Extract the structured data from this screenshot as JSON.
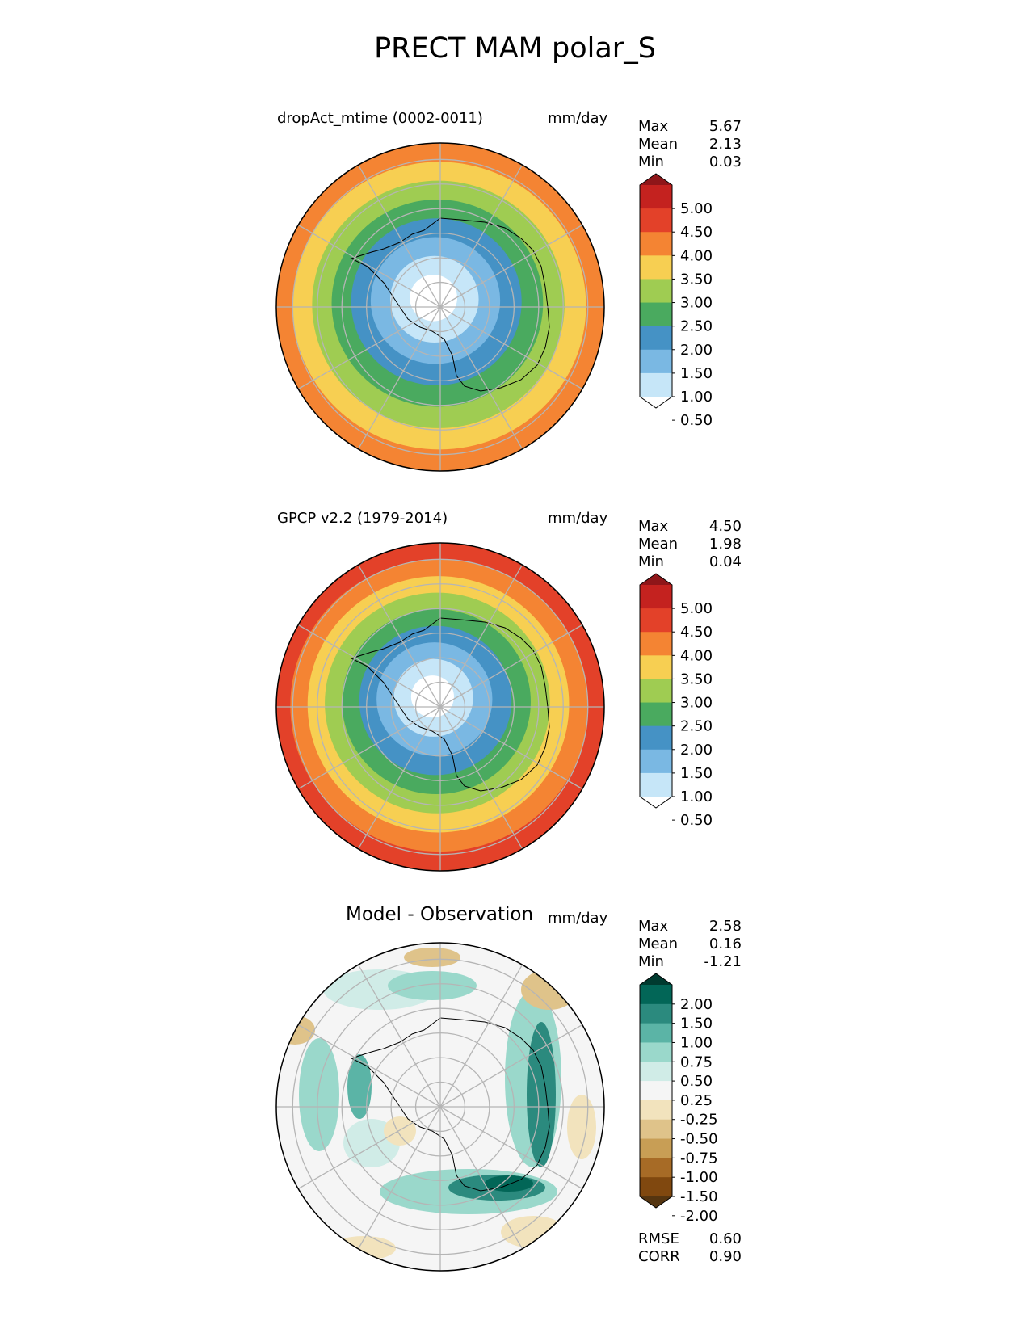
{
  "figure": {
    "title": "PRECT MAM polar_S"
  },
  "panels": [
    {
      "id": "model",
      "title": "dropAct_mtime (0002-0011)",
      "units": "mm/day",
      "stats": [
        {
          "label": "Max",
          "value": "5.67"
        },
        {
          "label": "Mean",
          "value": "2.13"
        },
        {
          "label": "Min",
          "value": "0.03"
        }
      ],
      "colorbar": {
        "levels": [
          "0.50",
          "1.00",
          "1.50",
          "2.00",
          "2.50",
          "3.00",
          "3.50",
          "4.00",
          "4.50",
          "5.00"
        ],
        "colors": [
          "#ffffff",
          "#c6e6f8",
          "#7ab8e3",
          "#4592c5",
          "#4aaa5f",
          "#9fcc52",
          "#f7cf52",
          "#f48433",
          "#e34129",
          "#c4221f",
          "#8f1619"
        ],
        "extend": "both"
      },
      "map_rings": [
        "#f48433",
        "#f7cf52",
        "#9fcc52",
        "#4aaa5f",
        "#4592c5",
        "#7ab8e3",
        "#c6e6f8",
        "#ffffff"
      ]
    },
    {
      "id": "obs",
      "title": "GPCP v2.2 (1979-2014)",
      "units": "mm/day",
      "stats": [
        {
          "label": "Max",
          "value": "4.50"
        },
        {
          "label": "Mean",
          "value": "1.98"
        },
        {
          "label": "Min",
          "value": "0.04"
        }
      ],
      "colorbar": {
        "levels": [
          "0.50",
          "1.00",
          "1.50",
          "2.00",
          "2.50",
          "3.00",
          "3.50",
          "4.00",
          "4.50",
          "5.00"
        ],
        "colors": [
          "#ffffff",
          "#c6e6f8",
          "#7ab8e3",
          "#4592c5",
          "#4aaa5f",
          "#9fcc52",
          "#f7cf52",
          "#f48433",
          "#e34129",
          "#c4221f",
          "#8f1619"
        ],
        "extend": "both"
      },
      "map_rings": [
        "#e34129",
        "#f48433",
        "#f7cf52",
        "#9fcc52",
        "#4aaa5f",
        "#4592c5",
        "#7ab8e3",
        "#c6e6f8",
        "#ffffff"
      ]
    },
    {
      "id": "diff",
      "title": "Model - Observation",
      "units": "mm/day",
      "stats": [
        {
          "label": "Max",
          "value": "2.58"
        },
        {
          "label": "Mean",
          "value": "0.16"
        },
        {
          "label": "Min",
          "value": "-1.21"
        }
      ],
      "colorbar": {
        "levels": [
          "-2.00",
          "-1.50",
          "-1.00",
          "-0.75",
          "-0.50",
          "-0.25",
          "0.25",
          "0.50",
          "0.75",
          "1.00",
          "1.50",
          "2.00"
        ],
        "colors": [
          "#553510",
          "#80480f",
          "#a76b26",
          "#c89e55",
          "#dfc38a",
          "#f2e3bd",
          "#f5f5f5",
          "#d0ece7",
          "#9ad8cb",
          "#5bb4a6",
          "#2b8a7e",
          "#026657",
          "#003b30"
        ],
        "extend": "both"
      },
      "footer": [
        {
          "label": "RMSE",
          "value": "0.60"
        },
        {
          "label": "CORR",
          "value": "0.90"
        }
      ]
    }
  ]
}
